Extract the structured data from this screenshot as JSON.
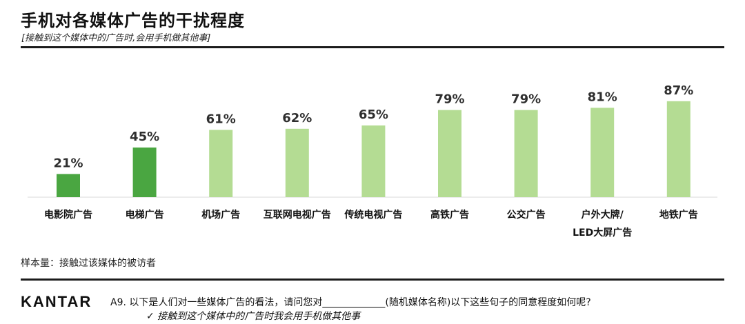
{
  "header": {
    "title": "手机对各媒体广告的干扰程度",
    "subtitle": "[接触到这个媒体中的广告时,会用手机做其他事]"
  },
  "footer": {
    "sample_note": "样本量：接触过该媒体的被访者",
    "logo": "KANTAR",
    "question": "A9. 以下是人们对一些媒体广告的看法，请问您对_____________(随机媒体名称)以下这些句子的同意程度如何呢?",
    "answer": "✓ 接触到这个媒体中的广告时我会用手机做其他事"
  },
  "colors": {
    "dark_green": "#4aa641",
    "light_green": "#b4dc93",
    "baseline": "#d9d9d9"
  },
  "chart_data": {
    "type": "bar",
    "categories": [
      "电影院广告",
      "电梯广告",
      "机场广告",
      "互联网电视广告",
      "传统电视广告",
      "高铁广告",
      "公交广告",
      "户外大牌/\nLED大屏广告",
      "地铁广告"
    ],
    "values": [
      21,
      45,
      61,
      62,
      65,
      79,
      79,
      81,
      87
    ],
    "value_labels": [
      "21%",
      "45%",
      "61%",
      "62%",
      "65%",
      "79%",
      "79%",
      "81%",
      "87%"
    ],
    "highlight": [
      true,
      true,
      false,
      false,
      false,
      false,
      false,
      false,
      false
    ],
    "unit": "%",
    "ylim": [
      0,
      100
    ],
    "grid": false,
    "legend": "none"
  }
}
